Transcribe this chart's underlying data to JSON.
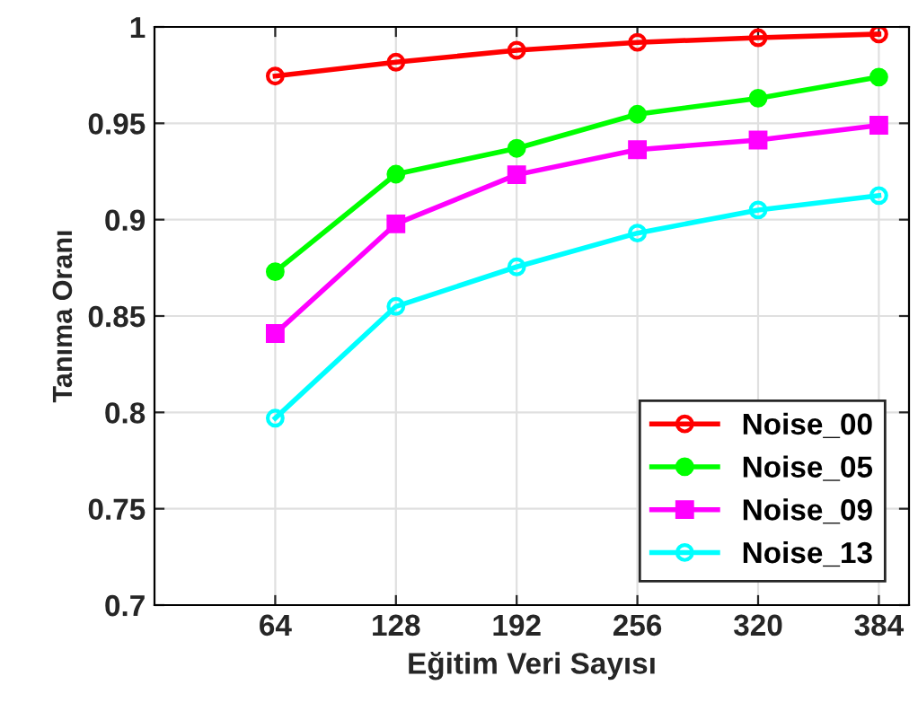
{
  "chart_data": {
    "type": "line",
    "xlabel": "Eğitim Veri Sayısı",
    "ylabel": "Tanıma Oranı",
    "x": [
      64,
      128,
      192,
      256,
      320,
      384
    ],
    "series": [
      {
        "name": "Noise_00",
        "color": "#ff0000",
        "marker": "circle",
        "values": [
          0.9745,
          0.9817,
          0.9879,
          0.992,
          0.9944,
          0.9963
        ]
      },
      {
        "name": "Noise_05",
        "color": "#00ff00",
        "marker": "circle",
        "values": [
          0.873,
          0.9236,
          0.937,
          0.9547,
          0.963,
          0.974
        ]
      },
      {
        "name": "Noise_09",
        "color": "#ff00ff",
        "marker": "square",
        "values": [
          0.8409,
          0.8978,
          0.9233,
          0.9363,
          0.9413,
          0.949
        ]
      },
      {
        "name": "Noise_13",
        "color": "#00ffff",
        "marker": "circle",
        "values": [
          0.797,
          0.855,
          0.8755,
          0.893,
          0.905,
          0.9125
        ]
      }
    ],
    "xlim": [
      0,
      400
    ],
    "xticks": [
      64,
      128,
      192,
      256,
      320,
      384
    ],
    "ylim": [
      0.7,
      1
    ],
    "yticks": [
      0.7,
      0.75,
      0.8,
      0.85,
      0.9,
      0.95,
      1
    ],
    "grid": true,
    "legend": "bottom right"
  }
}
